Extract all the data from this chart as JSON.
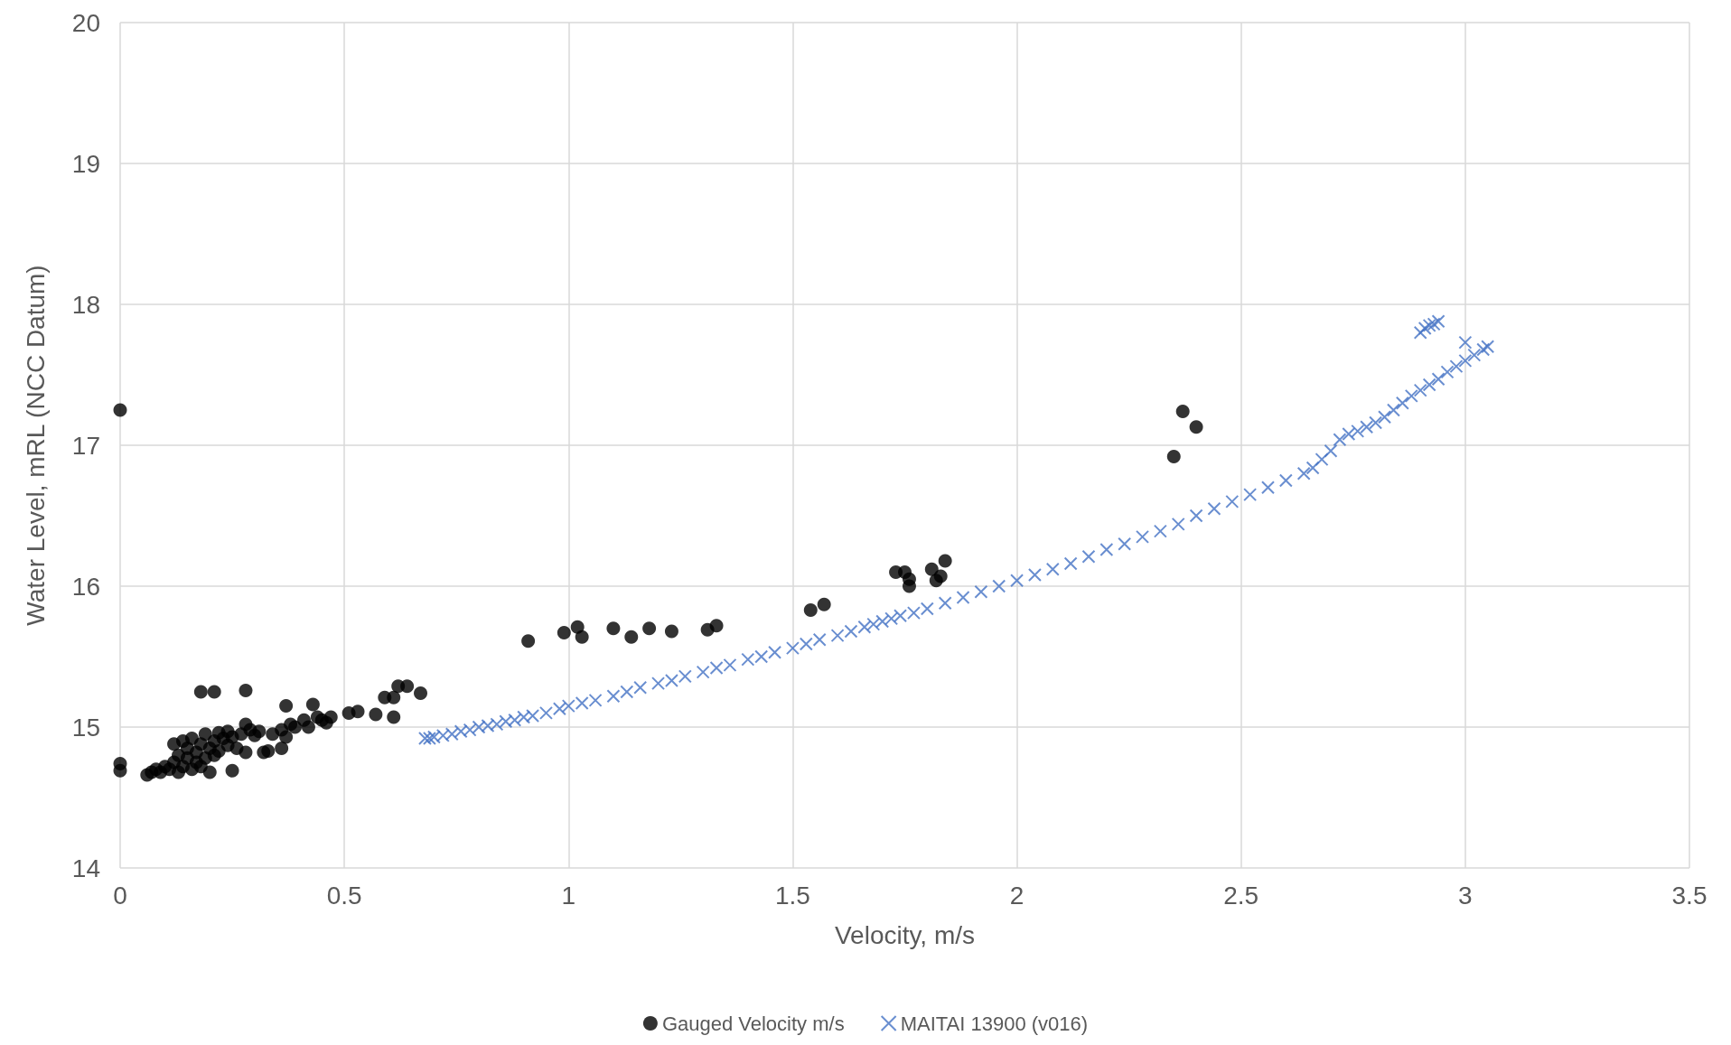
{
  "chart_data": {
    "type": "scatter",
    "xlabel": "Velocity, m/s",
    "ylabel": "Water Level, mRL (NCC Datum)",
    "xlim": [
      0,
      3.5
    ],
    "xticks": [
      0,
      0.5,
      1,
      1.5,
      2,
      2.5,
      3,
      3.5
    ],
    "ylim": [
      14,
      20
    ],
    "yticks": [
      14,
      15,
      16,
      17,
      18,
      19,
      20
    ],
    "grid": true,
    "legend": "bottom",
    "series": [
      {
        "name": "Gauged Velocity m/s",
        "color": "#000000",
        "marker": "circle",
        "x": [
          0,
          0,
          0,
          0.06,
          0.07,
          0.08,
          0.09,
          0.1,
          0.11,
          0.12,
          0.12,
          0.13,
          0.13,
          0.14,
          0.14,
          0.15,
          0.15,
          0.16,
          0.16,
          0.17,
          0.17,
          0.18,
          0.18,
          0.19,
          0.19,
          0.2,
          0.2,
          0.21,
          0.21,
          0.22,
          0.22,
          0.23,
          0.24,
          0.24,
          0.25,
          0.26,
          0.27,
          0.28,
          0.28,
          0.29,
          0.3,
          0.31,
          0.32,
          0.33,
          0.34,
          0.36,
          0.36,
          0.37,
          0.38,
          0.39,
          0.41,
          0.42,
          0.44,
          0.45,
          0.47,
          0.18,
          0.21,
          0.28,
          0.37,
          0.43,
          0.25,
          0.46,
          0.51,
          0.53,
          0.57,
          0.59,
          0.61,
          0.61,
          0.62,
          0.64,
          0.67,
          0.91,
          0.99,
          1.02,
          1.03,
          1.1,
          1.14,
          1.18,
          1.23,
          1.31,
          1.33,
          1.54,
          1.57,
          1.73,
          1.75,
          1.76,
          1.76,
          1.81,
          1.82,
          1.83,
          1.84,
          2.35,
          2.37,
          2.4
        ],
        "values": [
          17.25,
          14.74,
          14.69,
          14.66,
          14.68,
          14.7,
          14.68,
          14.72,
          14.7,
          14.75,
          14.88,
          14.68,
          14.8,
          14.72,
          14.9,
          14.78,
          14.85,
          14.7,
          14.92,
          14.75,
          14.82,
          14.72,
          14.88,
          14.95,
          14.78,
          14.85,
          14.68,
          14.9,
          14.8,
          14.96,
          14.83,
          14.92,
          14.87,
          14.97,
          14.93,
          14.85,
          14.95,
          15.02,
          14.82,
          14.98,
          14.94,
          14.97,
          14.82,
          14.83,
          14.95,
          14.98,
          14.85,
          14.93,
          15.02,
          15,
          15.05,
          15,
          15.07,
          15.05,
          15.07,
          15.25,
          15.25,
          15.26,
          15.15,
          15.16,
          14.69,
          15.03,
          15.1,
          15.11,
          15.09,
          15.21,
          15.21,
          15.07,
          15.29,
          15.29,
          15.24,
          15.61,
          15.67,
          15.71,
          15.64,
          15.7,
          15.64,
          15.7,
          15.68,
          15.69,
          15.72,
          15.83,
          15.87,
          16.1,
          16.1,
          16.05,
          16,
          16.12,
          16.04,
          16.07,
          16.18,
          16.92,
          17.24,
          17.13
        ]
      },
      {
        "name": "MAITAI 13900 (v016)",
        "color": "#4472c4",
        "marker": "cross",
        "x": [
          0.68,
          0.69,
          0.7,
          0.72,
          0.74,
          0.76,
          0.78,
          0.8,
          0.82,
          0.84,
          0.86,
          0.88,
          0.9,
          0.92,
          0.95,
          0.98,
          1.0,
          1.03,
          1.06,
          1.1,
          1.13,
          1.16,
          1.2,
          1.23,
          1.26,
          1.3,
          1.33,
          1.36,
          1.4,
          1.43,
          1.46,
          1.5,
          1.53,
          1.56,
          1.6,
          1.63,
          1.66,
          1.68,
          1.7,
          1.72,
          1.74,
          1.77,
          1.8,
          1.84,
          1.88,
          1.92,
          1.96,
          2.0,
          2.04,
          2.08,
          2.12,
          2.16,
          2.2,
          2.24,
          2.28,
          2.32,
          2.36,
          2.4,
          2.44,
          2.48,
          2.52,
          2.56,
          2.6,
          2.64,
          2.66,
          2.68,
          2.7,
          2.72,
          2.74,
          2.76,
          2.78,
          2.8,
          2.82,
          2.84,
          2.86,
          2.88,
          2.9,
          2.92,
          2.94,
          2.96,
          2.98,
          3.0,
          3.02,
          3.04,
          3.05,
          2.9,
          2.91,
          2.92,
          2.93,
          2.94,
          3.0
        ],
        "values": [
          14.92,
          14.92,
          14.93,
          14.94,
          14.95,
          14.97,
          14.98,
          15.0,
          15.01,
          15.02,
          15.04,
          15.05,
          15.07,
          15.08,
          15.1,
          15.13,
          15.15,
          15.17,
          15.19,
          15.22,
          15.25,
          15.28,
          15.31,
          15.33,
          15.36,
          15.39,
          15.42,
          15.44,
          15.48,
          15.5,
          15.53,
          15.56,
          15.59,
          15.62,
          15.65,
          15.68,
          15.71,
          15.73,
          15.75,
          15.77,
          15.79,
          15.81,
          15.84,
          15.88,
          15.92,
          15.96,
          16.0,
          16.04,
          16.08,
          16.12,
          16.16,
          16.21,
          16.26,
          16.3,
          16.35,
          16.39,
          16.44,
          16.5,
          16.55,
          16.6,
          16.65,
          16.7,
          16.75,
          16.8,
          16.84,
          16.9,
          16.96,
          17.04,
          17.08,
          17.1,
          17.13,
          17.16,
          17.2,
          17.25,
          17.3,
          17.35,
          17.39,
          17.43,
          17.47,
          17.52,
          17.56,
          17.6,
          17.64,
          17.68,
          17.7,
          17.8,
          17.83,
          17.85,
          17.86,
          17.88,
          17.73
        ]
      }
    ]
  }
}
